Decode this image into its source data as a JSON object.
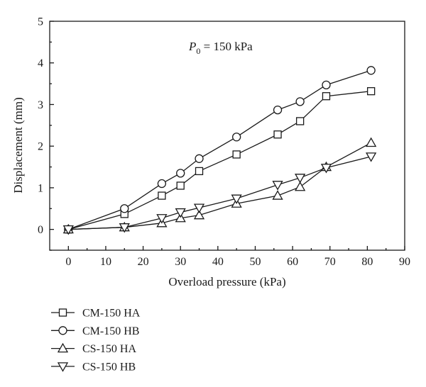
{
  "chart_data": {
    "type": "line",
    "annotation": {
      "symbol": "P",
      "subscript": "0",
      "text": " = 150 kPa"
    },
    "xlabel": "Overload pressure (kPa)",
    "ylabel": "Displacement (mm)",
    "xlim": [
      -5,
      90
    ],
    "ylim": [
      -0.5,
      5
    ],
    "xticks": [
      0,
      10,
      20,
      30,
      40,
      50,
      60,
      70,
      80,
      90
    ],
    "yticks": [
      0,
      1,
      2,
      3,
      4,
      5
    ],
    "grid": false,
    "legend_position": "bottom-left",
    "series": [
      {
        "name": "CM-150 HA",
        "marker": "square",
        "x": [
          0,
          15,
          25,
          30,
          35,
          45,
          56,
          62,
          69,
          81
        ],
        "y": [
          0,
          0.37,
          0.81,
          1.05,
          1.4,
          1.8,
          2.28,
          2.6,
          3.2,
          3.32
        ]
      },
      {
        "name": "CM-150 HB",
        "marker": "circle",
        "x": [
          0,
          15,
          25,
          30,
          35,
          45,
          56,
          62,
          69,
          81
        ],
        "y": [
          0,
          0.5,
          1.1,
          1.35,
          1.7,
          2.22,
          2.87,
          3.07,
          3.47,
          3.82
        ]
      },
      {
        "name": "CS-150 HA",
        "marker": "triangle-up",
        "x": [
          0,
          15,
          25,
          30,
          35,
          45,
          56,
          62,
          69,
          81
        ],
        "y": [
          0,
          0.05,
          0.15,
          0.27,
          0.34,
          0.62,
          0.81,
          1.02,
          1.5,
          2.08
        ]
      },
      {
        "name": "CS-150 HB",
        "marker": "triangle-down",
        "x": [
          0,
          15,
          25,
          30,
          35,
          45,
          56,
          62,
          69,
          81
        ],
        "y": [
          0,
          0.05,
          0.27,
          0.41,
          0.52,
          0.74,
          1.07,
          1.24,
          1.48,
          1.75
        ]
      }
    ]
  }
}
